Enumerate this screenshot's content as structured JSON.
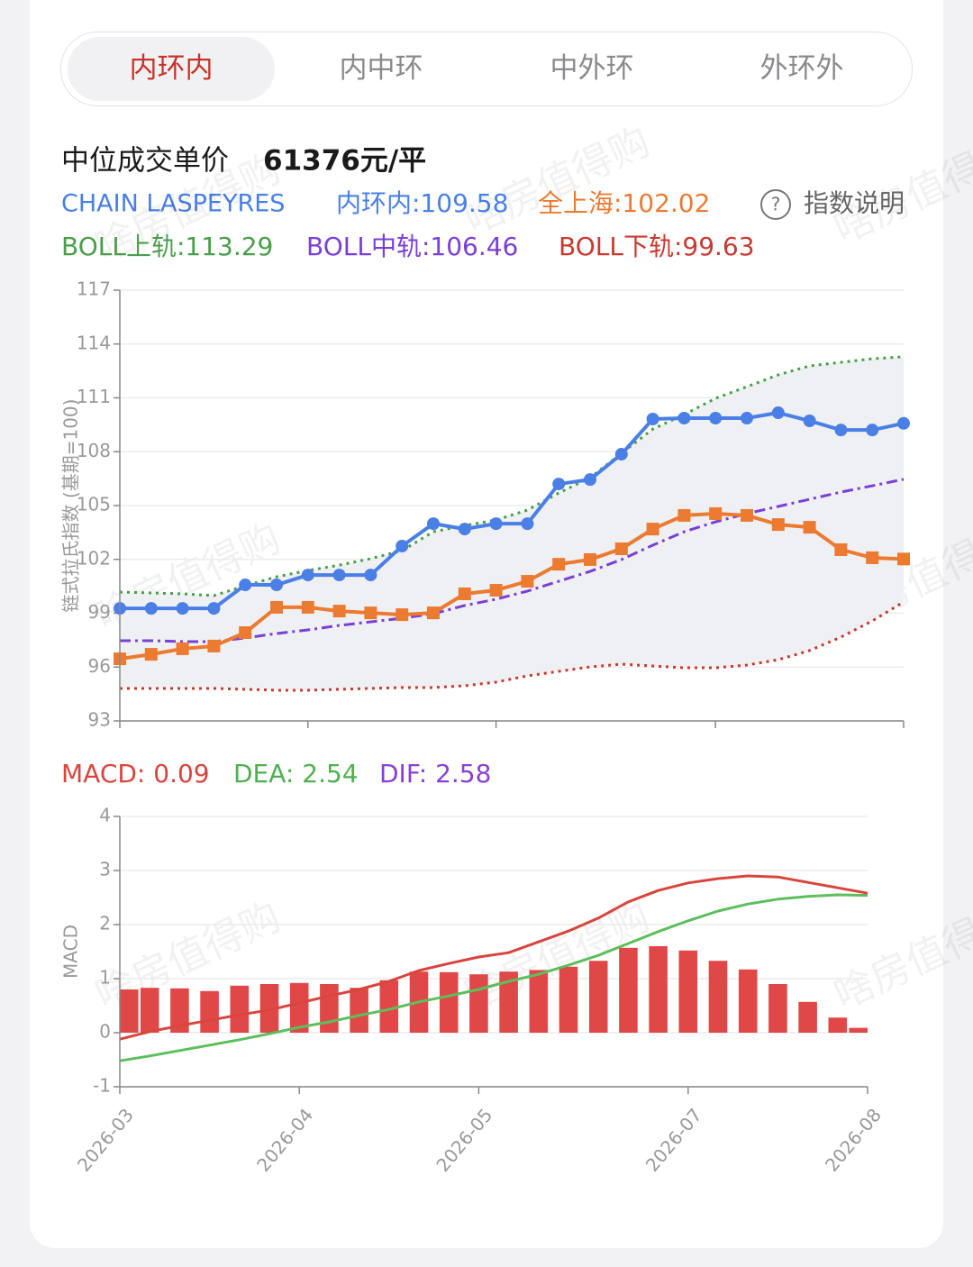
{
  "tabs": [
    "内环内",
    "内中环",
    "中外环",
    "外环外"
  ],
  "price_label": "中位成交单价",
  "price_value": "61376元/平",
  "help": "指数说明",
  "watermark": "啥房值得购",
  "chart_data": [
    {
      "type": "line",
      "index_name": "CHAIN LASPEYRES",
      "y_label": "链式拉氏指数 (基期=100)",
      "categories": [
        "2026-03",
        null,
        null,
        null,
        null,
        null,
        "2026-04",
        null,
        null,
        null,
        null,
        null,
        "2026-05",
        null,
        null,
        null,
        null,
        null,
        null,
        "2026-07",
        null,
        null,
        null,
        null,
        null,
        "2026-08"
      ],
      "ylim": [
        93,
        117
      ],
      "yticks": [
        93,
        96,
        99,
        102,
        105,
        108,
        111,
        114,
        117
      ],
      "grid": true,
      "band_fill": "#eff0f3",
      "series": [
        {
          "name": "内环内:109.58",
          "color": "#4a7fe6",
          "dash": "solid",
          "marker": "circle",
          "values": [
            99.27,
            99.27,
            99.27,
            99.27,
            100.58,
            100.58,
            101.13,
            101.13,
            101.13,
            102.74,
            103.99,
            103.69,
            103.99,
            103.99,
            106.2,
            106.45,
            107.86,
            109.82,
            109.87,
            109.87,
            109.87,
            110.17,
            109.72,
            109.21,
            109.21,
            109.58
          ]
        },
        {
          "name": "全上海:102.02",
          "color": "#ec7a31",
          "dash": "solid",
          "marker": "square",
          "values": [
            96.46,
            96.71,
            97.02,
            97.17,
            97.92,
            99.33,
            99.33,
            99.12,
            99.02,
            98.92,
            99.02,
            100.08,
            100.28,
            100.78,
            101.73,
            101.99,
            102.59,
            103.69,
            104.45,
            104.55,
            104.45,
            103.94,
            103.79,
            102.54,
            102.09,
            102.02
          ]
        },
        {
          "name": "BOLL上轨:113.29",
          "color": "#4a9e4a",
          "dash": "dotted",
          "marker": "none",
          "values": [
            100.18,
            100.13,
            100.08,
            99.98,
            100.53,
            101.03,
            101.38,
            101.68,
            102.04,
            102.49,
            103.54,
            103.89,
            104.19,
            104.75,
            105.7,
            106.55,
            107.91,
            109.26,
            110.07,
            110.97,
            111.62,
            112.28,
            112.78,
            112.98,
            113.18,
            113.29
          ]
        },
        {
          "name": "BOLL中轨:106.46",
          "color": "#7a3fd6",
          "dash": "dashdot",
          "marker": "none",
          "values": [
            97.47,
            97.47,
            97.42,
            97.42,
            97.62,
            97.87,
            98.07,
            98.32,
            98.52,
            98.72,
            98.97,
            99.43,
            99.78,
            100.23,
            100.78,
            101.33,
            101.99,
            102.79,
            103.54,
            104.09,
            104.55,
            104.95,
            105.35,
            105.75,
            106.1,
            106.46
          ]
        },
        {
          "name": "BOLL下轨:99.63",
          "color": "#c83a30",
          "dash": "dotted",
          "marker": "none",
          "values": [
            94.81,
            94.81,
            94.81,
            94.81,
            94.76,
            94.71,
            94.71,
            94.76,
            94.81,
            94.86,
            94.86,
            94.96,
            95.16,
            95.51,
            95.76,
            96.01,
            96.16,
            96.06,
            95.96,
            95.96,
            96.11,
            96.41,
            96.92,
            97.67,
            98.57,
            99.63
          ]
        }
      ]
    },
    {
      "type": "bar",
      "y_label": "MACD",
      "categories": [
        "2026-03",
        null,
        null,
        null,
        null,
        null,
        "2026-04",
        null,
        null,
        null,
        null,
        null,
        "2026-05",
        null,
        null,
        null,
        null,
        null,
        null,
        "2026-07",
        null,
        null,
        null,
        null,
        null,
        "2026-08"
      ],
      "ylim": [
        -1,
        4
      ],
      "yticks": [
        -1,
        0,
        1,
        2,
        3,
        4
      ],
      "grid": true,
      "series": [
        {
          "name": "MACD: 0.09",
          "color": "#e04848",
          "label_color": "#d9453d",
          "type": "bar",
          "values": [
            0.8,
            0.83,
            0.82,
            0.77,
            0.87,
            0.9,
            0.92,
            0.9,
            0.83,
            0.97,
            1.13,
            1.12,
            1.08,
            1.13,
            1.16,
            1.22,
            1.33,
            1.57,
            1.6,
            1.52,
            1.33,
            1.17,
            0.9,
            0.57,
            0.28,
            0.09
          ]
        },
        {
          "name": "DEA: 2.54",
          "color": "#5cbf5c",
          "label_color": "#4fb04f",
          "type": "line",
          "values": [
            -0.52,
            -0.43,
            -0.33,
            -0.23,
            -0.13,
            -0.02,
            0.1,
            0.2,
            0.32,
            0.43,
            0.57,
            0.68,
            0.8,
            0.95,
            1.08,
            1.25,
            1.43,
            1.65,
            1.87,
            2.07,
            2.25,
            2.38,
            2.47,
            2.52,
            2.55,
            2.54
          ]
        },
        {
          "name": "DIF: 2.58",
          "color": "#d9453d",
          "label_color": "#8a3fd6",
          "type": "line",
          "values": [
            -0.12,
            0.02,
            0.13,
            0.23,
            0.33,
            0.42,
            0.55,
            0.68,
            0.8,
            0.95,
            1.15,
            1.28,
            1.4,
            1.48,
            1.68,
            1.88,
            2.12,
            2.42,
            2.63,
            2.77,
            2.85,
            2.9,
            2.88,
            2.78,
            2.68,
            2.58
          ]
        }
      ]
    }
  ]
}
